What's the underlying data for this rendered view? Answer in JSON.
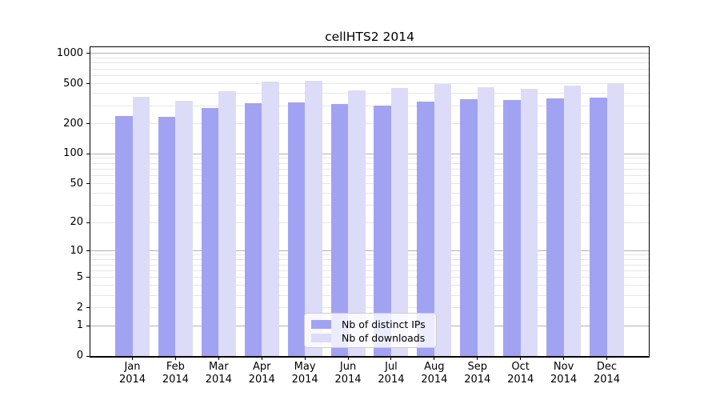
{
  "chart_data": {
    "type": "bar",
    "title": "cellHTS2 2014",
    "categories": [
      "Jan",
      "Feb",
      "Mar",
      "Apr",
      "May",
      "Jun",
      "Jul",
      "Aug",
      "Sep",
      "Oct",
      "Nov",
      "Dec"
    ],
    "x_tick_second_line": "2014",
    "series": [
      {
        "name": "Nb of distinct IPs",
        "color": "#a2a2f2",
        "values": [
          240,
          232,
          285,
          320,
          327,
          315,
          302,
          330,
          350,
          343,
          356,
          366
        ]
      },
      {
        "name": "Nb of downloads",
        "color": "#dcdcf8",
        "values": [
          370,
          337,
          420,
          525,
          535,
          430,
          453,
          497,
          462,
          448,
          476,
          506
        ]
      }
    ],
    "y_axis": {
      "scale": "log1p",
      "tick_values": [
        0,
        1,
        2,
        5,
        10,
        20,
        50,
        100,
        200,
        500,
        1000
      ],
      "max": 1150
    },
    "grid": {
      "major_color": "#b0b0b0",
      "minor_color": "#e6e6e6",
      "minor_values": [
        3,
        4,
        6,
        7,
        8,
        9,
        30,
        40,
        60,
        70,
        80,
        90,
        300,
        400,
        600,
        700,
        800,
        900
      ]
    },
    "legend": {
      "position": "lower center"
    },
    "axis_color": "#000000",
    "background_color": "#ffffff"
  }
}
